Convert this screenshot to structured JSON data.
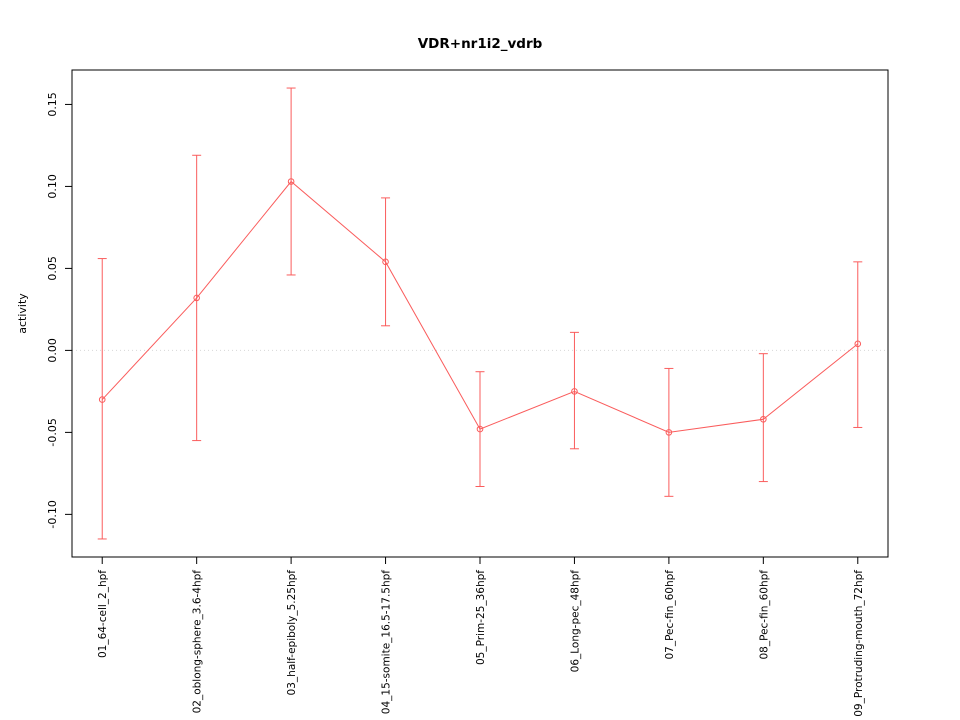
{
  "chart_data": {
    "type": "line",
    "title": "VDR+nr1i2_vdrb",
    "ylabel": "activity",
    "xlabel": "",
    "categories": [
      "01_64-cell_2_hpf",
      "02_oblong-sphere_3.6-4hpf",
      "03_half-epiboly_5.25hpf",
      "04_15-somite_16.5-17.5hpf",
      "05_Prim-25_36hpf",
      "06_Long-pec_48hpf",
      "07_Pec-fin_60hpf",
      "08_Pec-fin_60hpf",
      "09_Protruding-mouth_72hpf"
    ],
    "series": [
      {
        "name": "activity",
        "values": [
          -0.03,
          0.032,
          0.103,
          0.054,
          -0.048,
          -0.025,
          -0.05,
          -0.042,
          0.004
        ],
        "err_low": [
          -0.115,
          -0.055,
          0.046,
          0.015,
          -0.083,
          -0.06,
          -0.089,
          -0.08,
          -0.047
        ],
        "err_high": [
          0.056,
          0.119,
          0.16,
          0.093,
          -0.013,
          0.011,
          -0.011,
          -0.002,
          0.054
        ]
      }
    ],
    "yticks": [
      -0.1,
      -0.05,
      0.0,
      0.05,
      0.1,
      0.15
    ],
    "ytick_labels": [
      "-0.10",
      "-0.05",
      "0.00",
      "0.05",
      "0.10",
      "0.15"
    ],
    "ylim": [
      -0.126,
      0.171
    ],
    "zero_line": 0,
    "grid": false,
    "legend": "none",
    "colors": {
      "series": "#fa5c5c",
      "zero_line": "#d8d8d8",
      "axis": "#000000"
    }
  }
}
